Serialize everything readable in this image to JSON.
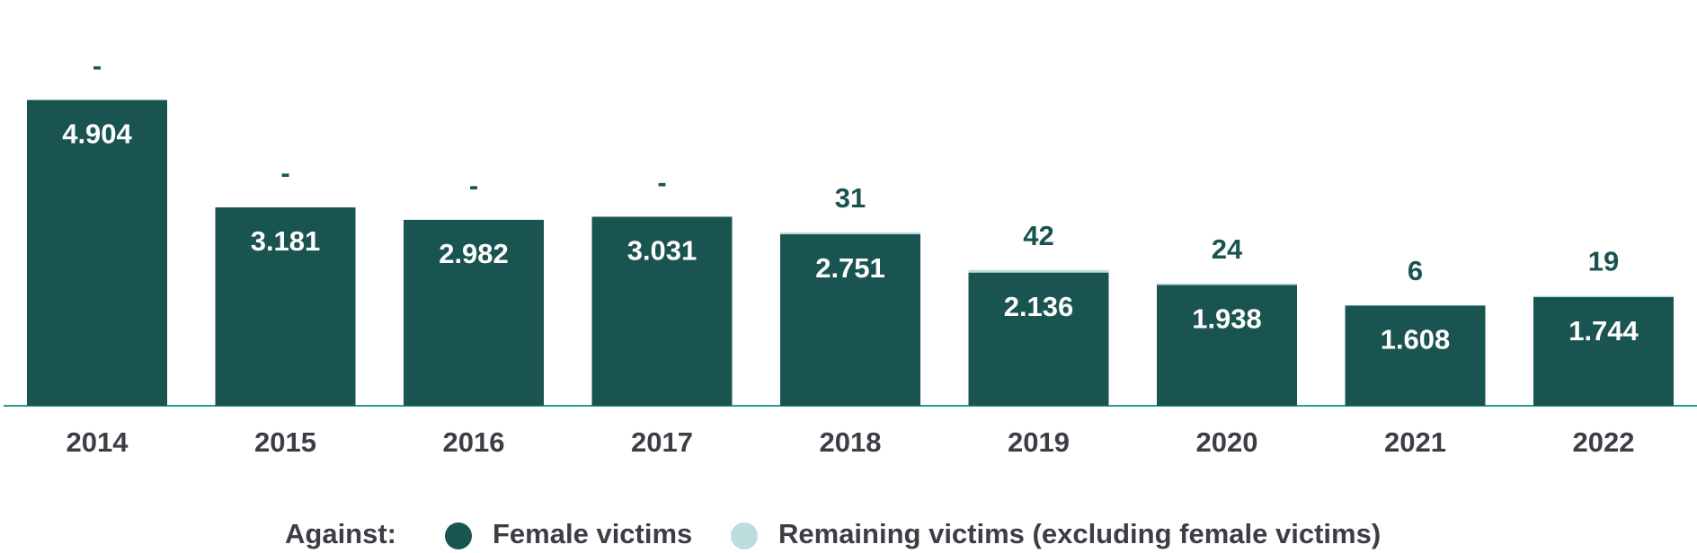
{
  "chart_data": {
    "type": "stacked_bar",
    "categories": [
      "2014",
      "2015",
      "2016",
      "2017",
      "2018",
      "2019",
      "2020",
      "2021",
      "2022"
    ],
    "legend_title": "Against:",
    "series": [
      {
        "name": "Female victims",
        "color": "#1a5450",
        "values": [
          4904,
          3181,
          2982,
          3031,
          2751,
          2136,
          1938,
          1608,
          1744
        ],
        "value_labels": [
          "4.904",
          "3.181",
          "2.982",
          "3.031",
          "2.751",
          "2.136",
          "1.938",
          "1.608",
          "1.744"
        ]
      },
      {
        "name": "Remaining victims (excluding female victims)",
        "color": "#b9dedb",
        "values": [
          null,
          null,
          null,
          null,
          31,
          42,
          24,
          6,
          19
        ],
        "value_labels": [
          "-",
          "-",
          "-",
          "-",
          "31",
          "42",
          "24",
          "6",
          "19"
        ]
      }
    ],
    "ylim": [
      0,
      5600
    ],
    "legend_position": "bottom"
  }
}
